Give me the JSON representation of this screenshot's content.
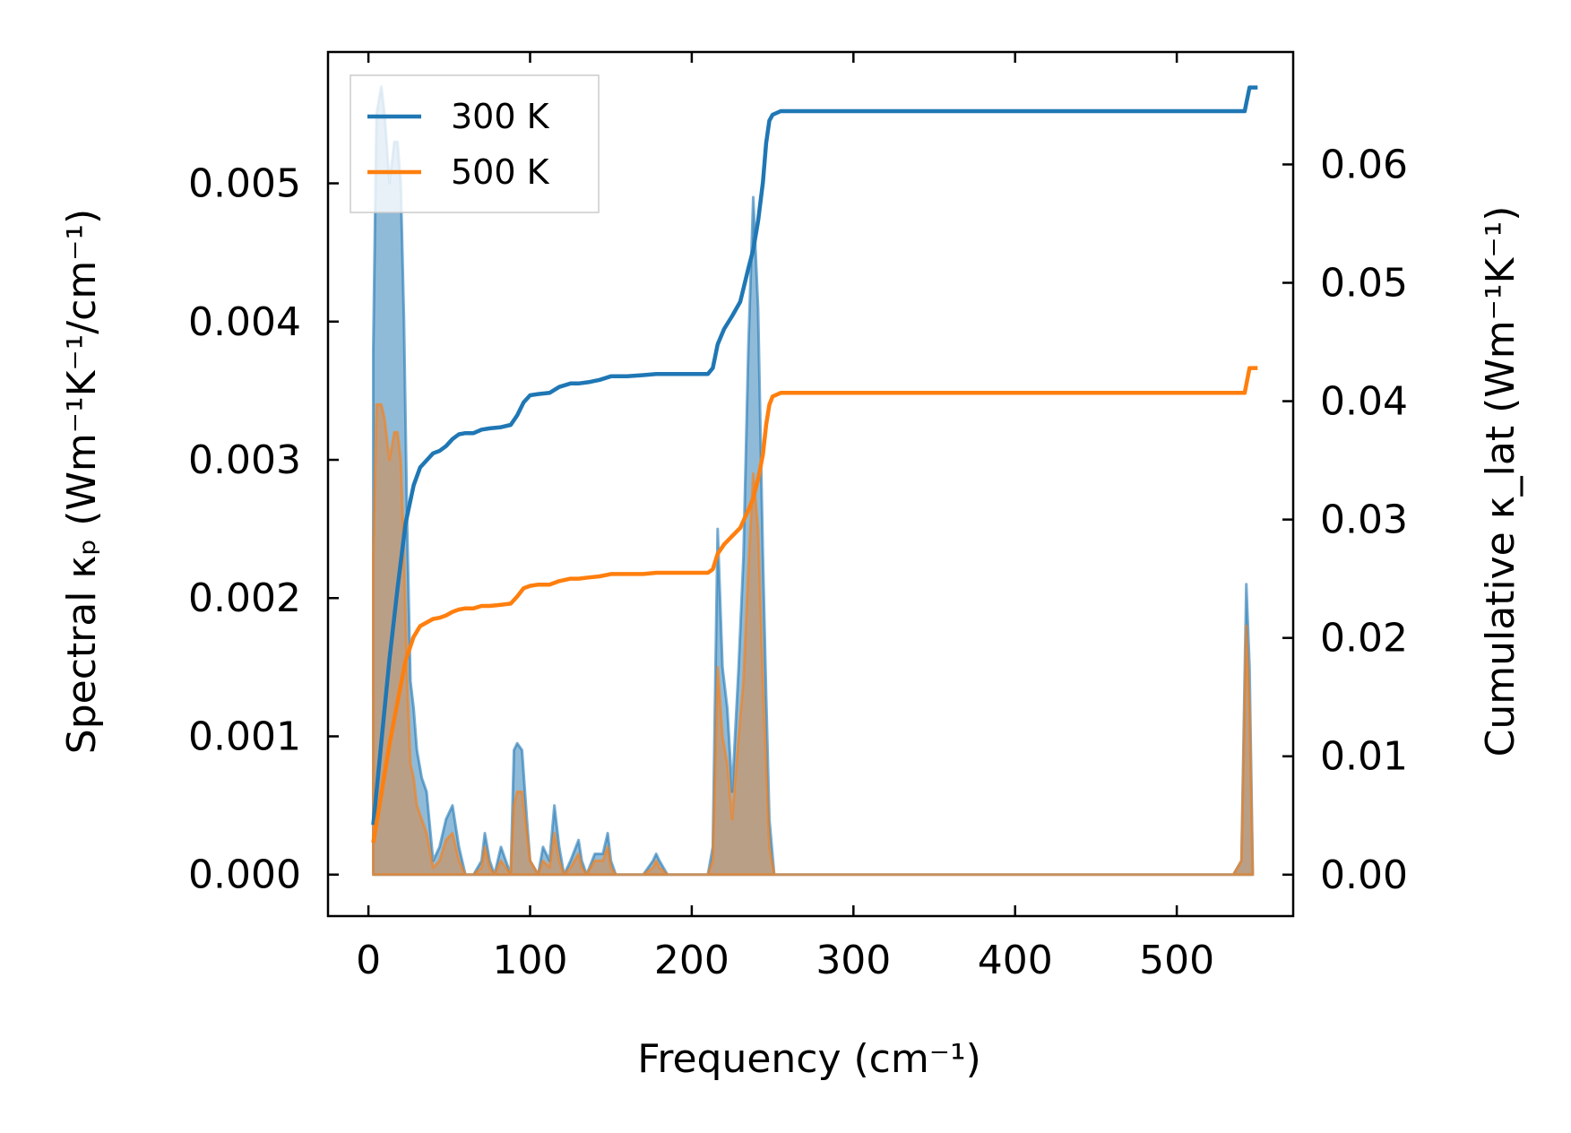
{
  "chart_data": {
    "type": "area",
    "xlabel": "Frequency (cm⁻¹)",
    "ylabel_left": "Spectral κₚ (Wm⁻¹K⁻¹/cm⁻¹)",
    "ylabel_right": "Cumulative κ_lat (Wm⁻¹K⁻¹)",
    "x_ticks": [
      "0",
      "100",
      "200",
      "300",
      "400",
      "500"
    ],
    "y_left_ticks": [
      "0.000",
      "0.001",
      "0.002",
      "0.003",
      "0.004",
      "0.005"
    ],
    "y_right_ticks": [
      "0.00",
      "0.01",
      "0.02",
      "0.03",
      "0.04",
      "0.05",
      "0.06"
    ],
    "xlim": [
      -25,
      572
    ],
    "ylim_left": [
      -0.0003,
      0.00595
    ],
    "ylim_right": [
      -0.0035,
      0.0695
    ],
    "legend": {
      "position": "top-left",
      "entries": [
        "300 K",
        "500 K"
      ]
    },
    "series": [
      {
        "name": "300 K",
        "color": "#1f77b4",
        "spectral": {
          "x": [
            3,
            5,
            8,
            10,
            13,
            16,
            18,
            20,
            22,
            24,
            26,
            28,
            30,
            33,
            36,
            40,
            44,
            48,
            52,
            56,
            60,
            65,
            70,
            72,
            75,
            78,
            82,
            85,
            88,
            90,
            92,
            95,
            98,
            100,
            105,
            108,
            112,
            115,
            118,
            121,
            125,
            130,
            132,
            135,
            140,
            145,
            148,
            150,
            153,
            160,
            170,
            176,
            178,
            180,
            185,
            190,
            200,
            210,
            213,
            216,
            219,
            222,
            225,
            229,
            232,
            235,
            238,
            241,
            244,
            246,
            248,
            251,
            253,
            255,
            258,
            300,
            400,
            500,
            535,
            540,
            543,
            545,
            547
          ],
          "values": [
            0.0038,
            0.0055,
            0.0057,
            0.0055,
            0.005,
            0.0053,
            0.0053,
            0.005,
            0.004,
            0.0025,
            0.0014,
            0.0012,
            0.0009,
            0.0007,
            0.0006,
            0.0001,
            0.0002,
            0.0004,
            0.0005,
            0.0002,
            0.0,
            0.0,
            0.0001,
            0.0003,
            0.0001,
            0.0,
            0.0002,
            0.0001,
            0.0,
            0.0009,
            0.00095,
            0.0009,
            0.0004,
            0.0001,
            0.0,
            0.0002,
            0.0001,
            0.0005,
            0.0002,
            0.0,
            0.0001,
            0.00025,
            0.0001,
            0.0,
            0.00015,
            0.00015,
            0.0003,
            0.0001,
            0.0,
            0.0,
            0.0,
            0.0001,
            0.00015,
            0.0001,
            0.0,
            0.0,
            0.0,
            0.0,
            0.0002,
            0.0025,
            0.0015,
            0.0012,
            0.0006,
            0.0015,
            0.0023,
            0.0038,
            0.0049,
            0.0041,
            0.0023,
            0.0013,
            0.0004,
            0.0,
            0.0,
            0.0,
            0.0,
            0.0,
            0.0,
            0.0,
            0.0,
            0.0001,
            0.0021,
            0.0015,
            0.0
          ]
        },
        "cumulative": {
          "x": [
            3,
            8,
            13,
            18,
            23,
            28,
            32,
            36,
            40,
            44,
            48,
            52,
            56,
            60,
            65,
            70,
            75,
            82,
            88,
            92,
            96,
            100,
            105,
            112,
            118,
            125,
            130,
            136,
            143,
            150,
            160,
            170,
            178,
            185,
            200,
            210,
            213,
            216,
            220,
            225,
            230,
            235,
            238,
            241,
            244,
            246,
            248,
            250,
            255,
            300,
            400,
            500,
            538,
            542,
            545,
            550
          ],
          "values": [
            0.0042,
            0.0112,
            0.0182,
            0.0242,
            0.0297,
            0.0329,
            0.0344,
            0.035,
            0.0356,
            0.0358,
            0.0362,
            0.0368,
            0.0372,
            0.0373,
            0.0373,
            0.0376,
            0.0377,
            0.0378,
            0.038,
            0.0388,
            0.0399,
            0.0405,
            0.0406,
            0.0407,
            0.0412,
            0.0415,
            0.0415,
            0.0416,
            0.0418,
            0.0421,
            0.0421,
            0.0422,
            0.0423,
            0.0423,
            0.0423,
            0.0423,
            0.0428,
            0.0448,
            0.0461,
            0.0472,
            0.0484,
            0.0512,
            0.0528,
            0.0552,
            0.0585,
            0.0618,
            0.0637,
            0.0642,
            0.0645,
            0.0645,
            0.0645,
            0.0645,
            0.0645,
            0.0645,
            0.0665,
            0.0665
          ]
        }
      },
      {
        "name": "500 K",
        "color": "#ff7f0e",
        "spectral": {
          "x": [
            3,
            5,
            8,
            10,
            13,
            16,
            18,
            20,
            22,
            24,
            26,
            28,
            30,
            33,
            36,
            40,
            44,
            48,
            52,
            56,
            60,
            65,
            70,
            72,
            75,
            78,
            82,
            85,
            88,
            90,
            92,
            95,
            98,
            100,
            105,
            108,
            112,
            115,
            118,
            121,
            125,
            130,
            132,
            135,
            140,
            145,
            148,
            150,
            153,
            160,
            170,
            176,
            178,
            180,
            185,
            190,
            200,
            210,
            213,
            216,
            219,
            222,
            225,
            229,
            232,
            235,
            238,
            241,
            244,
            246,
            248,
            251,
            253,
            255,
            258,
            300,
            400,
            500,
            535,
            540,
            543,
            545,
            547
          ],
          "values": [
            0.0023,
            0.0034,
            0.0034,
            0.0033,
            0.003,
            0.0032,
            0.0032,
            0.003,
            0.0023,
            0.0014,
            0.0008,
            0.0007,
            0.0005,
            0.0004,
            0.0003,
            5e-05,
            0.0001,
            0.00025,
            0.0003,
            0.0001,
            0.0,
            0.0,
            5e-05,
            0.0002,
            5e-05,
            0.0,
            0.0001,
            5e-05,
            0.0,
            0.0005,
            0.0006,
            0.0006,
            0.0003,
            0.0001,
            0.0,
            0.0001,
            5e-05,
            0.0003,
            0.0001,
            0.0,
            5e-05,
            0.00015,
            5e-05,
            0.0,
            0.0001,
            0.0001,
            0.0002,
            5e-05,
            0.0,
            0.0,
            0.0,
            5e-05,
            0.0001,
            5e-05,
            0.0,
            0.0,
            0.0,
            0.0,
            0.0001,
            0.0015,
            0.001,
            0.0008,
            0.0004,
            0.001,
            0.0014,
            0.0022,
            0.0029,
            0.0025,
            0.0014,
            0.0008,
            0.0002,
            0.0,
            0.0,
            0.0,
            0.0,
            0.0,
            0.0,
            0.0,
            0.0,
            0.0001,
            0.0018,
            0.0012,
            0.0
          ]
        },
        "cumulative": {
          "x": [
            3,
            8,
            13,
            18,
            23,
            28,
            32,
            36,
            40,
            44,
            48,
            52,
            56,
            60,
            65,
            70,
            75,
            82,
            88,
            92,
            96,
            100,
            105,
            112,
            118,
            125,
            130,
            136,
            143,
            150,
            160,
            170,
            178,
            185,
            200,
            210,
            213,
            216,
            220,
            225,
            230,
            235,
            238,
            241,
            244,
            246,
            248,
            250,
            255,
            300,
            400,
            500,
            538,
            542,
            545,
            550
          ],
          "values": [
            0.0027,
            0.0068,
            0.011,
            0.0146,
            0.0181,
            0.0201,
            0.021,
            0.0213,
            0.0216,
            0.0217,
            0.0219,
            0.0222,
            0.0224,
            0.0225,
            0.0225,
            0.0227,
            0.0227,
            0.0228,
            0.0229,
            0.0235,
            0.0242,
            0.0244,
            0.0245,
            0.0245,
            0.0248,
            0.025,
            0.025,
            0.0251,
            0.0252,
            0.0254,
            0.0254,
            0.0254,
            0.0255,
            0.0255,
            0.0255,
            0.0255,
            0.0258,
            0.0271,
            0.0279,
            0.0286,
            0.0293,
            0.0308,
            0.0318,
            0.0334,
            0.0355,
            0.038,
            0.0397,
            0.0404,
            0.0407,
            0.0407,
            0.0407,
            0.0407,
            0.0407,
            0.0407,
            0.0428,
            0.0428
          ]
        }
      }
    ]
  }
}
